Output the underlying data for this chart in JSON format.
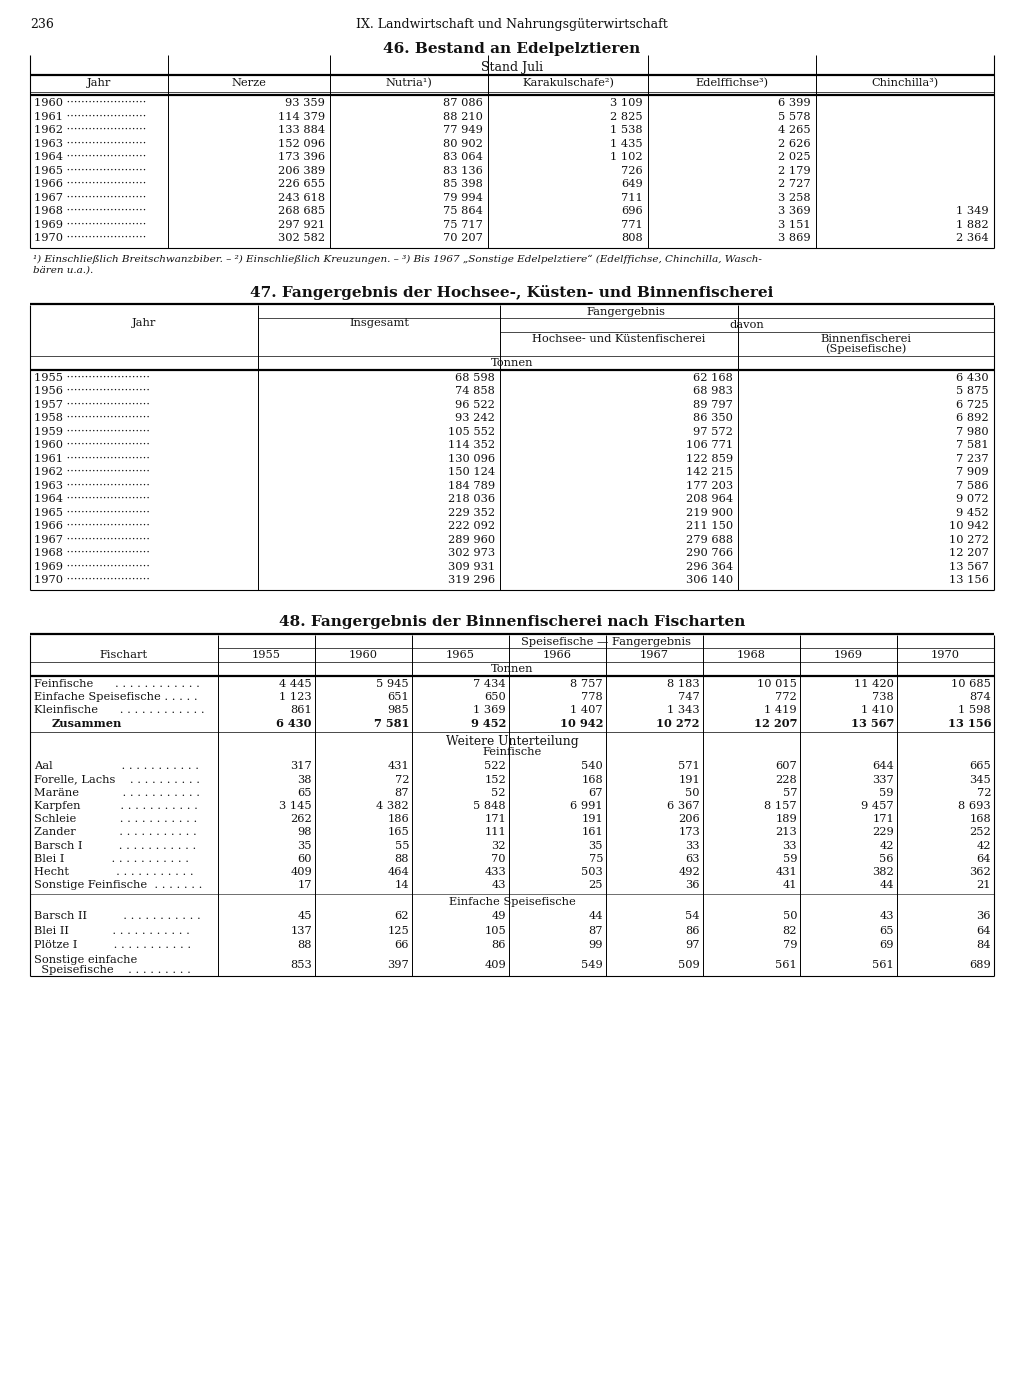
{
  "page_num": "236",
  "page_header": "IX. Landwirtschaft und Nahrungsgüterwirtschaft",
  "table46": {
    "title": "46. Bestand an Edelpelztieren",
    "subtitle": "Stand Juli",
    "headers": [
      "Jahr",
      "Nerze",
      "Nutria¹)",
      "Karakulschafe²)",
      "Edelffichse³)",
      "Chinchilla³)"
    ],
    "rows": [
      [
        "1960",
        "93 359",
        "87 086",
        "3 109",
        "6 399",
        ""
      ],
      [
        "1961",
        "114 379",
        "88 210",
        "2 825",
        "5 578",
        ""
      ],
      [
        "1962",
        "133 884",
        "77 949",
        "1 538",
        "4 265",
        ""
      ],
      [
        "1963",
        "152 096",
        "80 902",
        "1 435",
        "2 626",
        ""
      ],
      [
        "1964",
        "173 396",
        "83 064",
        "1 102",
        "2 025",
        ""
      ],
      [
        "1965",
        "206 389",
        "83 136",
        "726",
        "2 179",
        ""
      ],
      [
        "1966",
        "226 655",
        "85 398",
        "649",
        "2 727",
        ""
      ],
      [
        "1967",
        "243 618",
        "79 994",
        "711",
        "3 258",
        ""
      ],
      [
        "1968",
        "268 685",
        "75 864",
        "696",
        "3 369",
        "1 349"
      ],
      [
        "1969",
        "297 921",
        "75 717",
        "771",
        "3 151",
        "1 882"
      ],
      [
        "1970",
        "302 582",
        "70 207",
        "808",
        "3 869",
        "2 364"
      ]
    ],
    "footnote_line1": "¹) Einschließlich Breitschwanzbiber. – ²) Einschließlich Kreuzungen. – ³) Bis 1967 „Sonstige Edelpelztiere“ (Edelffichse, Chinchilla, Wasch-",
    "footnote_line2": "bären u.a.)."
  },
  "table47": {
    "title": "47. Fangergebnis der Hochsee-, Küsten- und Binnenfischerei",
    "header1": "Fangergebnis",
    "header2": "davon",
    "col_jahr": "Jahr",
    "col_insgesamt": "Insgesamt",
    "col_hochsee": "Hochsee- und Küstenfischerei",
    "col_binnen1": "Binnenfischerei",
    "col_binnen2": "(Speisefische)",
    "unit": "Tonnen",
    "rows": [
      [
        "1955",
        "68 598",
        "62 168",
        "6 430"
      ],
      [
        "1956",
        "74 858",
        "68 983",
        "5 875"
      ],
      [
        "1957",
        "96 522",
        "89 797",
        "6 725"
      ],
      [
        "1958",
        "93 242",
        "86 350",
        "6 892"
      ],
      [
        "1959",
        "105 552",
        "97 572",
        "7 980"
      ],
      [
        "1960",
        "114 352",
        "106 771",
        "7 581"
      ],
      [
        "1961",
        "130 096",
        "122 859",
        "7 237"
      ],
      [
        "1962",
        "150 124",
        "142 215",
        "7 909"
      ],
      [
        "1963",
        "184 789",
        "177 203",
        "7 586"
      ],
      [
        "1964",
        "218 036",
        "208 964",
        "9 072"
      ],
      [
        "1965",
        "229 352",
        "219 900",
        "9 452"
      ],
      [
        "1966",
        "222 092",
        "211 150",
        "10 942"
      ],
      [
        "1967",
        "289 960",
        "279 688",
        "10 272"
      ],
      [
        "1968",
        "302 973",
        "290 766",
        "12 207"
      ],
      [
        "1969",
        "309 931",
        "296 364",
        "13 567"
      ],
      [
        "1970",
        "319 296",
        "306 140",
        "13 156"
      ]
    ]
  },
  "table48": {
    "title": "48. Fangergebnis der Binnenfischerei nach Fischarten",
    "header_top": "Speisefische — Fangergebnis",
    "col_fischart": "Fischart",
    "years": [
      "1955",
      "1960",
      "1965",
      "1966",
      "1967",
      "1968",
      "1969",
      "1970"
    ],
    "unit": "Tonnen",
    "s1_rows": [
      [
        "Feinfische      . . . . . . . . . . . .",
        "4 445",
        "5 945",
        "7 434",
        "8 757",
        "8 183",
        "10 015",
        "11 420",
        "10 685"
      ],
      [
        "Einfache Speisefische . . . . .",
        "1 123",
        "651",
        "650",
        "778",
        "747",
        "772",
        "738",
        "874"
      ],
      [
        "Kleinfische      . . . . . . . . . . . .",
        "861",
        "985",
        "1 369",
        "1 407",
        "1 343",
        "1 419",
        "1 410",
        "1 598"
      ],
      [
        "Zusammen",
        "6 430",
        "7 581",
        "9 452",
        "10 942",
        "10 272",
        "12 207",
        "13 567",
        "13 156"
      ]
    ],
    "s2_label": "Weitere Unterteilung",
    "s2_sub": "Feinfische",
    "s2_rows": [
      [
        "Aal                   . . . . . . . . . . .",
        "317",
        "431",
        "522",
        "540",
        "571",
        "607",
        "644",
        "665"
      ],
      [
        "Forelle, Lachs    . . . . . . . . . .",
        "38",
        "72",
        "152",
        "168",
        "191",
        "228",
        "337",
        "345"
      ],
      [
        "Maräne            . . . . . . . . . . .",
        "65",
        "87",
        "52",
        "67",
        "50",
        "57",
        "59",
        "72"
      ],
      [
        "Karpfen           . . . . . . . . . . .",
        "3 145",
        "4 382",
        "5 848",
        "6 991",
        "6 367",
        "8 157",
        "9 457",
        "8 693"
      ],
      [
        "Schleie            . . . . . . . . . . .",
        "262",
        "186",
        "171",
        "191",
        "206",
        "189",
        "171",
        "168"
      ],
      [
        "Zander            . . . . . . . . . . .",
        "98",
        "165",
        "111",
        "161",
        "173",
        "213",
        "229",
        "252"
      ],
      [
        "Barsch I          . . . . . . . . . . .",
        "35",
        "55",
        "32",
        "35",
        "33",
        "33",
        "42",
        "42"
      ],
      [
        "Blei I             . . . . . . . . . . .",
        "60",
        "88",
        "70",
        "75",
        "63",
        "59",
        "56",
        "64"
      ],
      [
        "Hecht             . . . . . . . . . . .",
        "409",
        "464",
        "433",
        "503",
        "492",
        "431",
        "382",
        "362"
      ],
      [
        "Sonstige Feinfische  . . . . . . .",
        "17",
        "14",
        "43",
        "25",
        "36",
        "41",
        "44",
        "21"
      ]
    ],
    "s3_sub": "Einfache Speisefische",
    "s3_rows": [
      [
        "Barsch II          . . . . . . . . . . .",
        "45",
        "62",
        "49",
        "44",
        "54",
        "50",
        "43",
        "36"
      ],
      [
        "Blei II            . . . . . . . . . . .",
        "137",
        "125",
        "105",
        "87",
        "86",
        "82",
        "65",
        "64"
      ],
      [
        "Plötze I          . . . . . . . . . . .",
        "88",
        "66",
        "86",
        "99",
        "97",
        "79",
        "69",
        "84"
      ],
      [
        "Sonstige einfache",
        "853",
        "397",
        "409",
        "549",
        "509",
        "561",
        "561",
        "689"
      ]
    ],
    "s3_row3_line2": "  Speisefische    . . . . . . . . ."
  }
}
